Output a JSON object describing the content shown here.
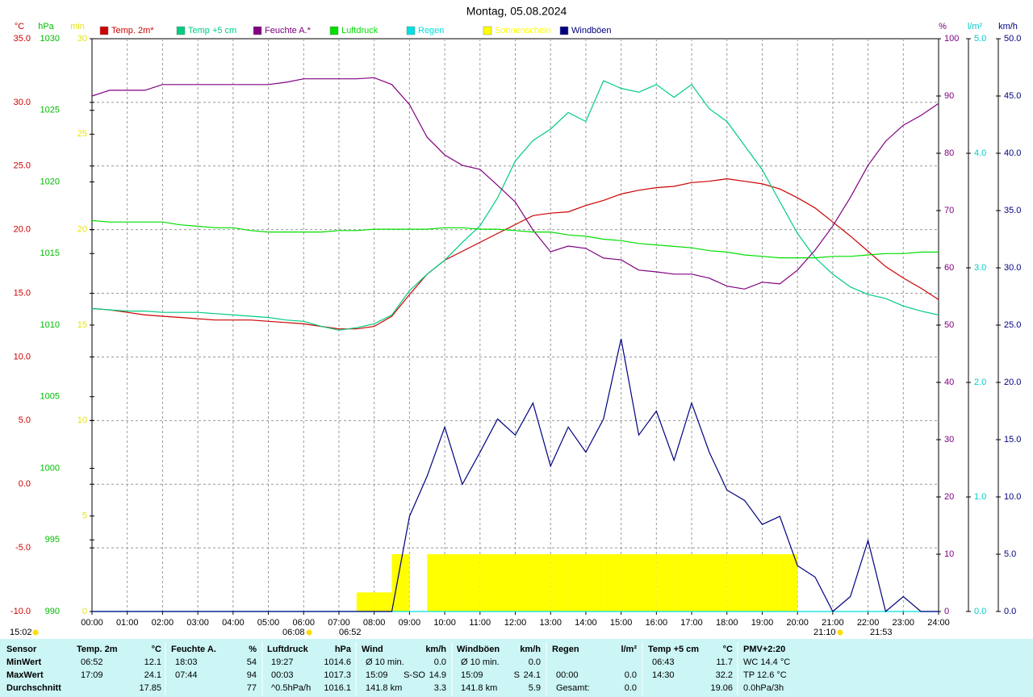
{
  "chart_data": {
    "type": "line",
    "title": "Montag, 05.08.2024",
    "x": [
      0,
      0.5,
      1,
      1.5,
      2,
      2.5,
      3,
      3.5,
      4,
      4.5,
      5,
      5.5,
      6,
      6.5,
      7,
      7.5,
      8,
      8.5,
      9,
      9.5,
      10,
      10.5,
      11,
      11.5,
      12,
      12.5,
      13,
      13.5,
      14,
      14.5,
      15,
      15.5,
      16,
      16.5,
      17,
      17.5,
      18,
      18.5,
      19,
      19.5,
      20,
      20.5,
      21,
      21.5,
      22,
      22.5,
      23,
      23.5,
      24
    ],
    "xlim": [
      0,
      24
    ],
    "xticks": [
      {
        "value": 0,
        "label": "00:00"
      },
      {
        "value": 1,
        "label": "01:00"
      },
      {
        "value": 2,
        "label": "02:00"
      },
      {
        "value": 3,
        "label": "03:00"
      },
      {
        "value": 4,
        "label": "04:00"
      },
      {
        "value": 5,
        "label": "05:00"
      },
      {
        "value": 6,
        "label": "06:00"
      },
      {
        "value": 7,
        "label": "07:00"
      },
      {
        "value": 8,
        "label": "08:00"
      },
      {
        "value": 9,
        "label": "09:00"
      },
      {
        "value": 10,
        "label": "10:00"
      },
      {
        "value": 11,
        "label": "11:00"
      },
      {
        "value": 12,
        "label": "12:00"
      },
      {
        "value": 13,
        "label": "13:00"
      },
      {
        "value": 14,
        "label": "14:00"
      },
      {
        "value": 15,
        "label": "15:00"
      },
      {
        "value": 16,
        "label": "16:00"
      },
      {
        "value": 17,
        "label": "17:00"
      },
      {
        "value": 18,
        "label": "18:00"
      },
      {
        "value": 19,
        "label": "19:00"
      },
      {
        "value": 20,
        "label": "20:00"
      },
      {
        "value": 21,
        "label": "21:00"
      },
      {
        "value": 22,
        "label": "22:00"
      },
      {
        "value": 23,
        "label": "23:00"
      },
      {
        "value": 24,
        "label": "24:00"
      }
    ],
    "x_grid": true,
    "y_axes": [
      {
        "label": "°C",
        "color": "#cc0000",
        "ylim": [
          -10,
          35
        ],
        "grid": true,
        "yticks": [
          {
            "value": -10,
            "label": "-10.0"
          },
          {
            "value": -5,
            "label": "-5.0"
          },
          {
            "value": 0,
            "label": "0.0"
          },
          {
            "value": 5,
            "label": "5.0"
          },
          {
            "value": 10,
            "label": "10.0"
          },
          {
            "value": 15,
            "label": "15.0"
          },
          {
            "value": 20,
            "label": "20.0"
          },
          {
            "value": 25,
            "label": "25.0"
          },
          {
            "value": 30,
            "label": "30.0"
          },
          {
            "value": 35,
            "label": "35.0"
          }
        ]
      },
      {
        "label": "hPa",
        "color": "#00bb00",
        "ylim": [
          990,
          1030
        ],
        "grid": false,
        "yticks": [
          990,
          995,
          1000,
          1005,
          1010,
          1015,
          1020,
          1025,
          1030
        ]
      },
      {
        "label": "min",
        "color": "#e6e600",
        "ylim": [
          0,
          30
        ],
        "grid": false,
        "yticks": [
          0,
          5,
          10,
          15,
          20,
          25,
          30
        ]
      },
      {
        "label": "%",
        "color": "#800080",
        "ylim": [
          0,
          100
        ],
        "grid": false,
        "yticks": [
          0,
          10,
          20,
          30,
          40,
          50,
          60,
          70,
          80,
          90,
          100
        ]
      },
      {
        "label": "l/m²",
        "color": "#00cccc",
        "ylim": [
          0,
          5
        ],
        "grid": false,
        "yticks": [
          {
            "value": 0,
            "label": "0.0"
          },
          {
            "value": 1,
            "label": "1.0"
          },
          {
            "value": 2,
            "label": "2.0"
          },
          {
            "value": 3,
            "label": "3.0"
          },
          {
            "value": 4,
            "label": "4.0"
          },
          {
            "value": 5,
            "label": "5.0"
          }
        ]
      },
      {
        "label": "km/h",
        "color": "#000080",
        "ylim": [
          0,
          50
        ],
        "grid": false,
        "yticks": [
          {
            "value": 0,
            "label": "0.0"
          },
          {
            "value": 5,
            "label": "5.0"
          },
          {
            "value": 10,
            "label": "10.0"
          },
          {
            "value": 15,
            "label": "15.0"
          },
          {
            "value": 20,
            "label": "20.0"
          },
          {
            "value": 25,
            "label": "25.0"
          },
          {
            "value": 30,
            "label": "30.0"
          },
          {
            "value": 35,
            "label": "35.0"
          },
          {
            "value": 40,
            "label": "40.0"
          },
          {
            "value": 45,
            "label": "45.0"
          },
          {
            "value": 50,
            "label": "50.0"
          }
        ]
      }
    ],
    "series": [
      {
        "name": "Temp. 2m*",
        "color": "#cc0000",
        "axis": 0,
        "type": "line",
        "values": [
          13.8,
          13.7,
          13.5,
          13.3,
          13.2,
          13.1,
          13.0,
          12.9,
          12.9,
          12.9,
          12.8,
          12.7,
          12.6,
          12.4,
          12.2,
          12.2,
          12.4,
          13.2,
          14.9,
          16.5,
          17.6,
          18.3,
          19.0,
          19.7,
          20.4,
          21.1,
          21.3,
          21.4,
          21.9,
          22.3,
          22.8,
          23.1,
          23.3,
          23.4,
          23.7,
          23.8,
          24.0,
          23.8,
          23.6,
          23.2,
          22.5,
          21.7,
          20.6,
          19.5,
          18.3,
          17.1,
          16.2,
          15.4,
          14.5
        ]
      },
      {
        "name": "Temp +5 cm",
        "color": "#00cc80",
        "axis": 0,
        "type": "line",
        "values": [
          13.8,
          13.7,
          13.6,
          13.6,
          13.5,
          13.5,
          13.5,
          13.4,
          13.3,
          13.2,
          13.1,
          12.9,
          12.8,
          12.4,
          12.1,
          12.3,
          12.6,
          13.3,
          15.2,
          16.5,
          17.6,
          19.0,
          20.3,
          22.5,
          25.4,
          27.0,
          27.9,
          29.2,
          28.5,
          31.7,
          31.1,
          30.8,
          31.4,
          30.4,
          31.4,
          29.5,
          28.5,
          26.6,
          24.7,
          22.2,
          19.7,
          17.8,
          16.5,
          15.5,
          14.9,
          14.6,
          14.0,
          13.6,
          13.3
        ]
      },
      {
        "name": "Feuchte A.*",
        "color": "#800080",
        "axis": 3,
        "type": "line",
        "values": [
          90,
          91,
          91,
          91,
          92,
          92,
          92,
          92,
          92,
          92,
          92,
          92.4,
          93,
          93,
          93,
          93,
          93.2,
          92,
          88.5,
          82.8,
          79.7,
          77.9,
          77.2,
          74.4,
          71.5,
          66.6,
          62.8,
          63.8,
          63.4,
          61.7,
          61.4,
          59.6,
          59.3,
          58.9,
          58.9,
          58.2,
          56.8,
          56.3,
          57.5,
          57.2,
          59.6,
          63.1,
          67.3,
          72.3,
          77.9,
          82.1,
          84.9,
          86.6,
          88.7
        ]
      },
      {
        "name": "Luftdruck",
        "color": "#00dd00",
        "axis": 1,
        "type": "line",
        "values": [
          1017.3,
          1017.2,
          1017.2,
          1017.2,
          1017.2,
          1017.0,
          1016.9,
          1016.8,
          1016.8,
          1016.6,
          1016.5,
          1016.5,
          1016.5,
          1016.5,
          1016.6,
          1016.6,
          1016.7,
          1016.7,
          1016.7,
          1016.7,
          1016.8,
          1016.8,
          1016.7,
          1016.7,
          1016.6,
          1016.5,
          1016.5,
          1016.3,
          1016.2,
          1016.0,
          1015.9,
          1015.7,
          1015.6,
          1015.5,
          1015.4,
          1015.2,
          1015.1,
          1014.9,
          1014.8,
          1014.7,
          1014.7,
          1014.7,
          1014.8,
          1014.8,
          1014.9,
          1015.0,
          1015.0,
          1015.1,
          1015.1
        ]
      },
      {
        "name": "Regen",
        "color": "#00e0e0",
        "axis": 4,
        "type": "line",
        "values": [
          0,
          0,
          0,
          0,
          0,
          0,
          0,
          0,
          0,
          0,
          0,
          0,
          0,
          0,
          0,
          0,
          0,
          0,
          0,
          0,
          0,
          0,
          0,
          0,
          0,
          0,
          0,
          0,
          0,
          0,
          0,
          0,
          0,
          0,
          0,
          0,
          0,
          0,
          0,
          0,
          0,
          0,
          0,
          0,
          0,
          0,
          0,
          0,
          0
        ]
      },
      {
        "name": "Sonnenschein",
        "color": "#ffff00",
        "axis": 2,
        "type": "bar",
        "values": [
          0,
          0,
          0,
          0,
          0,
          0,
          0,
          0,
          0,
          0,
          0,
          0,
          0,
          0,
          0,
          1,
          1,
          3,
          0,
          3,
          3,
          3,
          3,
          3,
          3,
          3,
          3,
          3,
          3,
          3,
          3,
          3,
          3,
          3,
          3,
          3,
          3,
          3,
          3,
          3,
          0,
          0,
          0,
          0,
          0,
          0,
          0,
          0,
          0
        ]
      },
      {
        "name": "Windböen",
        "color": "#000080",
        "axis": 5,
        "type": "line",
        "values": [
          0,
          0,
          0,
          0,
          0,
          0,
          0,
          0,
          0,
          0,
          0,
          0,
          0,
          0,
          0,
          0,
          0,
          0,
          8.3,
          11.8,
          16.1,
          11.1,
          13.9,
          16.8,
          15.4,
          18.2,
          12.7,
          16.1,
          13.9,
          16.8,
          23.8,
          15.4,
          17.5,
          13.2,
          18.2,
          13.9,
          10.6,
          9.7,
          7.6,
          8.3,
          4.0,
          3.0,
          0,
          1.3,
          6.2,
          0,
          1.3,
          0,
          0
        ]
      }
    ],
    "annotations": [
      "15:02",
      "06:08",
      "06:52",
      "21:10",
      "21:53"
    ]
  },
  "stats_table": {
    "columns": [
      {
        "name": "Sensor"
      },
      {
        "name": "Temp. 2m",
        "unit": "°C"
      },
      {
        "name": "Feuchte A.",
        "unit": "%"
      },
      {
        "name": "Luftdruck",
        "unit": "hPa"
      },
      {
        "name": "Wind",
        "unit": "km/h"
      },
      {
        "name": "Windböen",
        "unit": "km/h"
      },
      {
        "name": "Regen",
        "unit": "l/m²"
      },
      {
        "name": "Temp +5 cm",
        "unit": "°C"
      },
      {
        "name": "PMV+2:20"
      }
    ],
    "rows": [
      {
        "label": "MinWert",
        "cells": [
          [
            "06:52",
            "12.1"
          ],
          [
            "18:03",
            "54"
          ],
          [
            "19:27",
            "1014.6"
          ],
          [
            "Ø 10 min.",
            "0.0"
          ],
          [
            "Ø 10 min.",
            "0.0"
          ],
          [],
          [
            "06:43",
            "11.7"
          ],
          [
            "WC 14.4 °C"
          ]
        ]
      },
      {
        "label": "MaxWert",
        "cells": [
          [
            "17:09",
            "24.1"
          ],
          [
            "07:44",
            "94"
          ],
          [
            "00:03",
            "1017.3"
          ],
          [
            "15:09",
            "S-SO",
            "14.9"
          ],
          [
            "15:09",
            "S",
            "24.1"
          ],
          [
            "00:00",
            "0.0"
          ],
          [
            "14:30",
            "32.2"
          ],
          [
            "TP 12.6 °C"
          ]
        ]
      },
      {
        "label": "Durchschnitt",
        "cells": [
          [
            "17.85"
          ],
          [
            "77"
          ],
          [
            "^0.5hPa/h",
            "1016.1"
          ],
          [
            "141.8 km",
            "3.3"
          ],
          [
            "141.8 km",
            "5.9"
          ],
          [
            "Gesamt:",
            "0.0"
          ],
          [
            "19.06"
          ],
          [
            "0.0hPa/3h"
          ]
        ]
      }
    ]
  }
}
